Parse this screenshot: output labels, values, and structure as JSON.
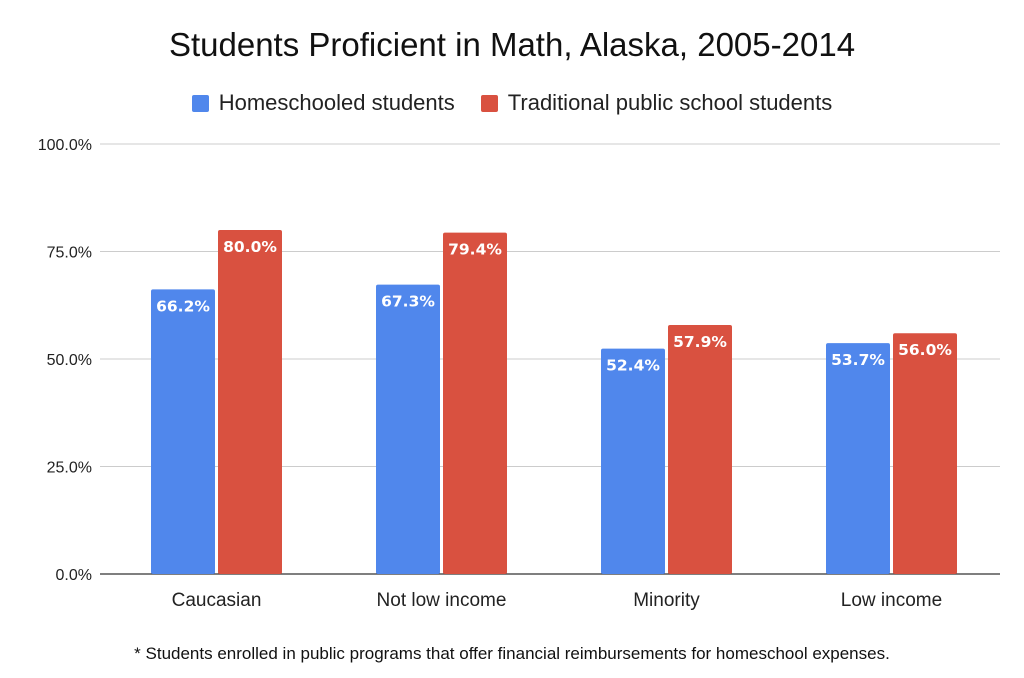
{
  "chart_data": {
    "type": "bar",
    "title": "Students Proficient in Math, Alaska, 2005-2014",
    "categories": [
      "Caucasian",
      "Not low income",
      "Minority",
      "Low income"
    ],
    "series": [
      {
        "name": "Homeschooled students",
        "color": "#5087EC",
        "values": [
          66.2,
          67.3,
          52.4,
          53.7
        ],
        "labels": [
          "66.2%",
          "67.3%",
          "52.4%",
          "53.7%"
        ]
      },
      {
        "name": "Traditional public school students",
        "color": "#D95140",
        "values": [
          80.0,
          79.4,
          57.9,
          56.0
        ],
        "labels": [
          "80.0%",
          "79.4%",
          "57.9%",
          "56.0%"
        ]
      }
    ],
    "yticks": [
      0,
      25,
      50,
      75,
      100
    ],
    "ytick_labels": [
      "0.0%",
      "25.0%",
      "50.0%",
      "75.0%",
      "100.0%"
    ],
    "ylim": [
      0,
      100
    ],
    "grid": true,
    "legend_position": "top"
  },
  "footnote": "* Students enrolled in public programs that offer financial reimbursements for homeschool expenses."
}
